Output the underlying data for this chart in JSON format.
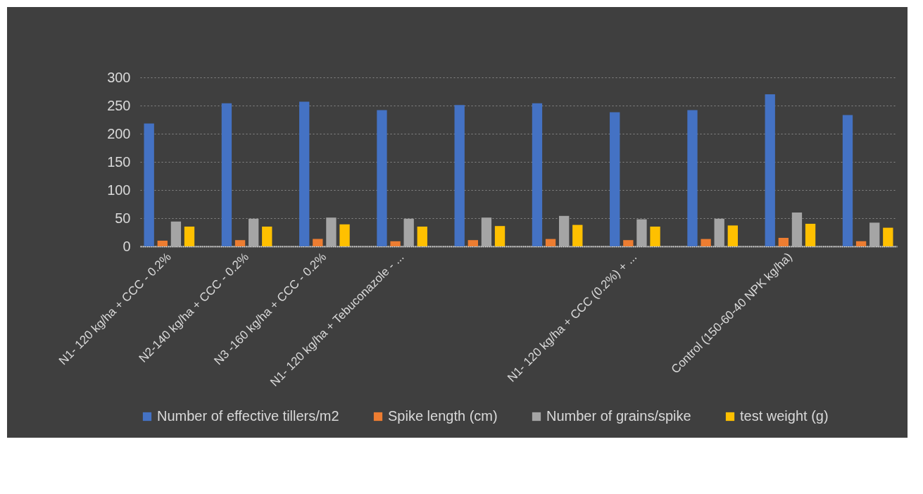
{
  "chart_data": {
    "type": "bar",
    "categories": [
      "N1- 120 kg/ha + CCC - 0.2%",
      "N2-140 kg/ha + CCC  - 0.2%",
      "N3 -160 kg/ha + CCC - 0.2%",
      "N1- 120 kg/ha + Tebuconazole - ...",
      null,
      null,
      "N1- 120 kg/ha + CCC (0.2%) + ...",
      null,
      "Control (150-60-40 NPK kg/ha)",
      null
    ],
    "series": [
      {
        "name": "Number of effective tillers/m2",
        "color": "#4472c4",
        "values": [
          218,
          254,
          257,
          242,
          251,
          254,
          238,
          242,
          270,
          233
        ]
      },
      {
        "name": "Spike length (cm)",
        "color": "#ed7d31",
        "values": [
          10,
          11,
          13,
          9,
          11,
          13,
          11,
          13,
          15,
          9
        ]
      },
      {
        "name": "Number of grains/spike",
        "color": "#a5a5a5",
        "values": [
          44,
          49,
          51,
          49,
          51,
          54,
          48,
          49,
          60,
          42
        ]
      },
      {
        "name": "test weight (g)",
        "color": "#ffc000",
        "values": [
          35,
          35,
          39,
          35,
          36,
          38,
          35,
          37,
          40,
          33
        ]
      }
    ],
    "ylim": [
      0,
      300
    ],
    "yticks": [
      0,
      50,
      100,
      150,
      200,
      250,
      300
    ],
    "grid": "y",
    "legend": "bottom"
  }
}
